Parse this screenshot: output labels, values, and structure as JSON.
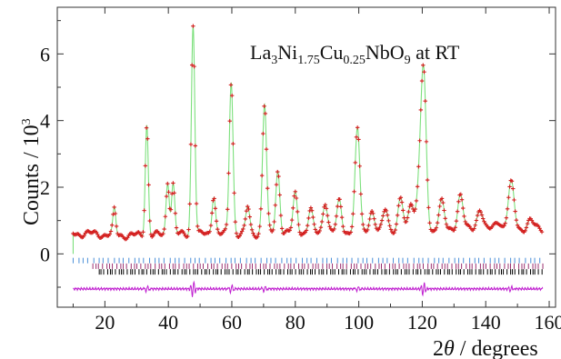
{
  "chart_data": {
    "type": "line",
    "title": {
      "parts": [
        {
          "t": "La",
          "sub": false
        },
        {
          "t": "3",
          "sub": true
        },
        {
          "t": "Ni",
          "sub": false
        },
        {
          "t": "1.75",
          "sub": true
        },
        {
          "t": "Cu",
          "sub": false
        },
        {
          "t": "0.25",
          "sub": true
        },
        {
          "t": "NbO",
          "sub": false
        },
        {
          "t": "9",
          "sub": true
        },
        {
          "t": " at RT",
          "sub": false
        }
      ]
    },
    "xlabel": {
      "pre": "2",
      "theta": "θ",
      "post": " / degrees"
    },
    "ylabel": {
      "pre": "Counts / 10",
      "sup": "3"
    },
    "xlim": [
      5,
      162
    ],
    "ylim": [
      -1.6,
      7.4
    ],
    "x_ticks": [
      "20",
      "40",
      "60",
      "80",
      "100",
      "120",
      "140",
      "160"
    ],
    "x_tick_values": [
      20,
      40,
      60,
      80,
      100,
      120,
      140,
      160
    ],
    "y_ticks": [
      "0",
      "2",
      "4",
      "6"
    ],
    "y_tick_values": [
      0,
      2,
      4,
      6
    ],
    "grid": false,
    "colors": {
      "observed": "#d42020",
      "calculated": "#7de07d",
      "difference": "#c020d0",
      "reflections_1": "#4a8fd8",
      "reflections_2": "#9b3070",
      "reflections_3": "#000000"
    },
    "x_range": [
      10,
      158
    ],
    "background": {
      "start": 0.62,
      "low_at": 30,
      "low": 0.55,
      "end": 0.75
    },
    "peaks": [
      {
        "x": 23.0,
        "y": 1.3
      },
      {
        "x": 33.2,
        "y": 3.9
      },
      {
        "x": 39.8,
        "y": 2.2
      },
      {
        "x": 41.5,
        "y": 2.1
      },
      {
        "x": 47.8,
        "y": 6.9
      },
      {
        "x": 54.3,
        "y": 1.8
      },
      {
        "x": 59.8,
        "y": 5.2
      },
      {
        "x": 65.0,
        "y": 1.4
      },
      {
        "x": 70.3,
        "y": 4.5
      },
      {
        "x": 74.5,
        "y": 2.5
      },
      {
        "x": 80.0,
        "y": 1.8
      },
      {
        "x": 84.8,
        "y": 1.3
      },
      {
        "x": 89.4,
        "y": 1.6
      },
      {
        "x": 93.9,
        "y": 1.6
      },
      {
        "x": 99.6,
        "y": 3.7
      },
      {
        "x": 104.0,
        "y": 1.3
      },
      {
        "x": 108.5,
        "y": 1.4
      },
      {
        "x": 113.2,
        "y": 1.6
      },
      {
        "x": 116.5,
        "y": 1.6
      },
      {
        "x": 119.0,
        "y": 1.8
      },
      {
        "x": 120.4,
        "y": 5.3
      },
      {
        "x": 126.0,
        "y": 1.6
      },
      {
        "x": 132.0,
        "y": 1.8
      },
      {
        "x": 138.2,
        "y": 1.4
      },
      {
        "x": 144.0,
        "y": 1.0
      },
      {
        "x": 148.0,
        "y": 2.1
      },
      {
        "x": 154.0,
        "y": 1.0
      }
    ],
    "reflection_rows": [
      {
        "y": -0.2,
        "start": 10,
        "end": 158,
        "step": 1.6
      },
      {
        "y": -0.37,
        "start": 16,
        "end": 158,
        "step": 1.1
      },
      {
        "y": -0.54,
        "start": 18,
        "end": 158,
        "step": 0.9
      }
    ],
    "difference": {
      "baseline": -1.05,
      "spikes": [
        {
          "x": 33.2,
          "a": 0.12
        },
        {
          "x": 47.8,
          "a": 0.22
        },
        {
          "x": 59.8,
          "a": 0.15
        },
        {
          "x": 70.3,
          "a": 0.12
        },
        {
          "x": 99.6,
          "a": 0.1
        },
        {
          "x": 120.4,
          "a": 0.18
        },
        {
          "x": 148.0,
          "a": 0.08
        }
      ]
    }
  }
}
